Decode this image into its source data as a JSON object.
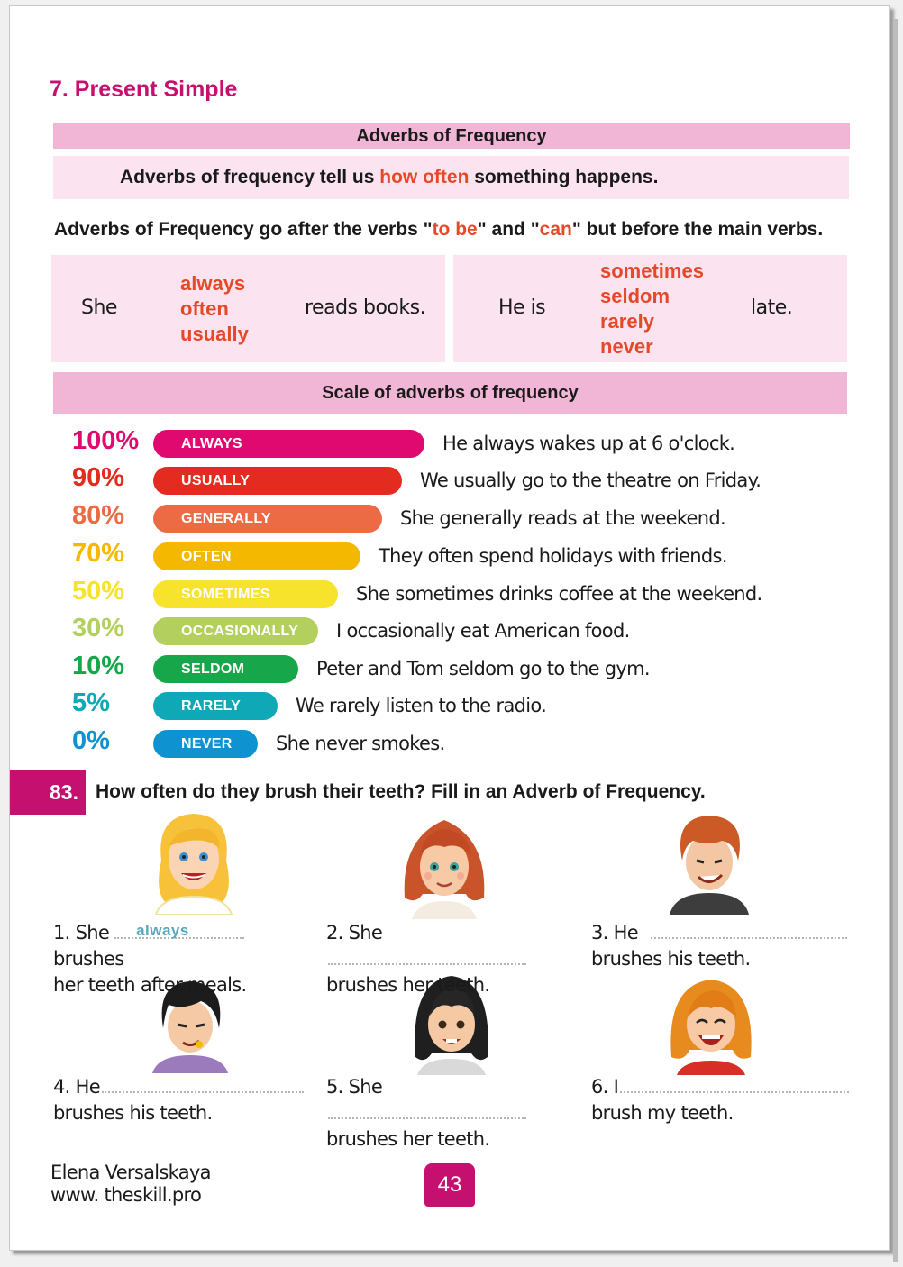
{
  "lesson": {
    "title": "7. Present Simple"
  },
  "section_title": "Adverbs of Frequency",
  "definition": {
    "before": "Adverbs of frequency tell us ",
    "highlight": "how often",
    "after": " something happens."
  },
  "rule": {
    "part1": "Adverbs of Frequency go after the verbs \"",
    "verb1": "to be",
    "part2": "\" and \"",
    "verb2": "can",
    "part3": "\" but before the main verbs."
  },
  "examples": {
    "left": {
      "subject": "She",
      "adverbs": [
        "always",
        "often",
        "usually"
      ],
      "ending": "reads books."
    },
    "right": {
      "subject": "He is",
      "adverbs": [
        "sometimes",
        "seldom",
        "rarely",
        "never"
      ],
      "ending": "late."
    }
  },
  "scale": {
    "title": "Scale of adverbs of frequency",
    "rows": [
      {
        "percent": "100%",
        "adverb": "ALWAYS",
        "sentence": "He always wakes up at 6 o'clock.",
        "color": "#e0096f"
      },
      {
        "percent": "90%",
        "adverb": "USUALLY",
        "sentence": "We usually go to the theatre on Friday.",
        "color": "#e42b20"
      },
      {
        "percent": "80%",
        "adverb": "GENERALLY",
        "sentence": "She generally reads at the weekend.",
        "color": "#ec6a44"
      },
      {
        "percent": "70%",
        "adverb": "OFTEN",
        "sentence": "They often spend holidays with friends.",
        "color": "#f5b800"
      },
      {
        "percent": "50%",
        "adverb": "SOMETIMES",
        "sentence": "She sometimes drinks coffee at the weekend.",
        "color": "#f7e22c"
      },
      {
        "percent": "30%",
        "adverb": "OCCASIONALLY",
        "sentence": "I occasionally eat American food.",
        "color": "#b3cf5d"
      },
      {
        "percent": "10%",
        "adverb": "SELDOM",
        "sentence": "Peter and Tom seldom go to the gym.",
        "color": "#17a649"
      },
      {
        "percent": "5%",
        "adverb": "RARELY",
        "sentence": "We rarely listen to the radio.",
        "color": "#0fa8b7"
      },
      {
        "percent": "0%",
        "adverb": "NEVER",
        "sentence": "She never smokes.",
        "color": "#0f92d0"
      }
    ]
  },
  "exercise": {
    "number": "83.",
    "instruction": "How often do they brush their teeth? Fill in an Adverb of Frequency.",
    "items": [
      {
        "lead": "1. She",
        "answer": "always",
        "after_blank": "brushes",
        "second_line": "her teeth after meals."
      },
      {
        "lead": "2. She",
        "answer": "",
        "after_blank": "",
        "second_line": "brushes her teeth."
      },
      {
        "lead": "3. He",
        "answer": "",
        "after_blank": "",
        "second_line": "brushes his teeth."
      },
      {
        "lead": "4. He",
        "answer": "",
        "after_blank": "",
        "second_line": "brushes his teeth."
      },
      {
        "lead": "5. She",
        "answer": "",
        "after_blank": "",
        "second_line": "brushes her teeth."
      },
      {
        "lead": "6. I",
        "answer": "",
        "after_blank": "",
        "second_line": "brush my teeth."
      }
    ]
  },
  "footer": {
    "author": "Elena Versalskaya",
    "website": "www. theskill.pro",
    "page_number": "43"
  }
}
